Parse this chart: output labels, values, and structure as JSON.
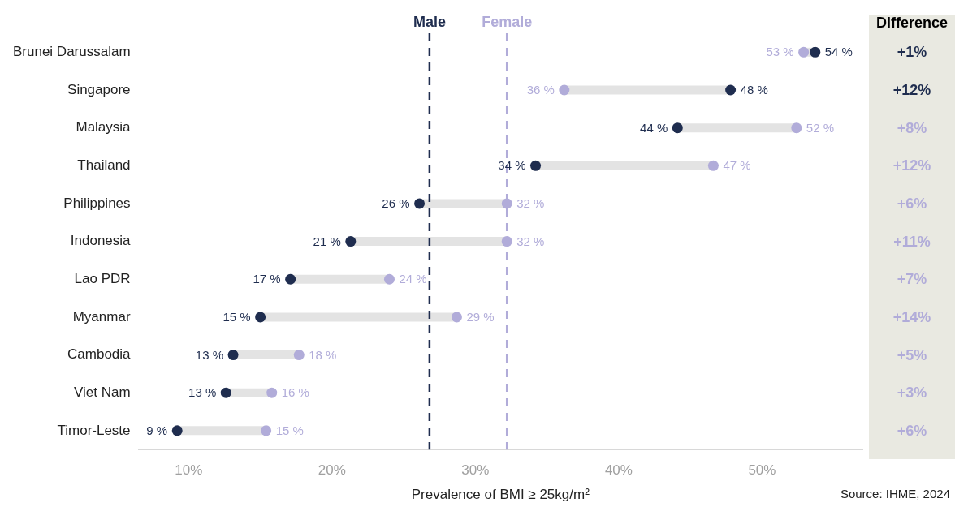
{
  "chart_data": {
    "type": "scatter",
    "orientation": "horizontal",
    "xlabel": "Prevalence of BMI ≥ 25kg/m²",
    "categories": [
      "Brunei Darussalam",
      "Singapore",
      "Malaysia",
      "Thailand",
      "Philippines",
      "Indonesia",
      "Lao PDR",
      "Myanmar",
      "Cambodia",
      "Viet Nam",
      "Timor-Leste"
    ],
    "series": [
      {
        "name": "Male",
        "color": "#1f2d4f",
        "values": [
          53.7,
          47.8,
          44.1,
          34.2,
          26.1,
          21.3,
          17.1,
          15.0,
          13.1,
          12.6,
          9.2
        ],
        "value_labels": [
          "54 %",
          "48 %",
          "44 %",
          "34 %",
          "26 %",
          "21 %",
          "17 %",
          "15 %",
          "13 %",
          "13 %",
          "9 %"
        ]
      },
      {
        "name": "Female",
        "color": "#b1acd9",
        "values": [
          52.9,
          36.2,
          52.4,
          46.6,
          32.2,
          32.2,
          24.0,
          28.7,
          17.7,
          15.8,
          15.4
        ],
        "value_labels": [
          "53 %",
          "36 %",
          "52 %",
          "47 %",
          "32 %",
          "32 %",
          "24 %",
          "29 %",
          "18 %",
          "16 %",
          "15 %"
        ]
      }
    ],
    "xlim": [
      6.5,
      57
    ],
    "xticks": [
      {
        "value": 10,
        "label": "10%"
      },
      {
        "value": 20,
        "label": "20%"
      },
      {
        "value": 30,
        "label": "30%"
      },
      {
        "value": 40,
        "label": "40%"
      },
      {
        "value": 50,
        "label": "50%"
      }
    ],
    "ref_lines": [
      {
        "axis": "x",
        "value": 26.8,
        "color": "#1f2d4f",
        "line_style": "dashed"
      },
      {
        "axis": "x",
        "value": 32.2,
        "color": "#b1acd9",
        "line_style": "dashed"
      }
    ],
    "annotations": [
      "Difference",
      "+1%",
      "+12%",
      "+8%",
      "+12%",
      "+6%",
      "+11%",
      "+7%",
      "+14%",
      "+5%",
      "+3%",
      "+6%",
      "Source: IHME, 2024"
    ],
    "grid": false,
    "legend": false,
    "marker": "circle"
  }
}
